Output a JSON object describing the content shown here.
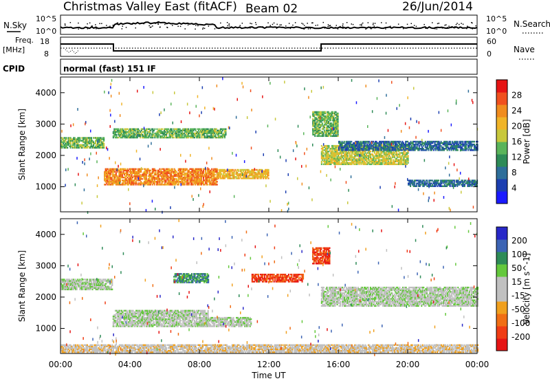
{
  "header": {
    "title": "Christmas Valley East (fitACF)",
    "beam": "Beam 02",
    "date": "26/Jun/2014"
  },
  "top_panels": {
    "nsky_label": "N.Sky",
    "nsearch_label": "N.Search",
    "noise_ticks": [
      "10^5",
      "10^0"
    ],
    "noise_ticks_right": [
      "10^5",
      "10^0"
    ],
    "freq_label_1": "Freq.",
    "freq_label_2": "[MHz]",
    "freq_ticks": [
      "18",
      "8"
    ],
    "nave_label": "Nave",
    "nave_ticks": [
      "60",
      "0"
    ],
    "cpid_label": "CPID",
    "cpid_text": "normal (fast) 151 IF"
  },
  "colors": {
    "power": [
      "#1a1aff",
      "#1c3fb0",
      "#2e6e9a",
      "#2e8b57",
      "#5ab45a",
      "#c8c83c",
      "#f0b428",
      "#f08c1e",
      "#f0501e",
      "#e61414"
    ],
    "velocity": [
      "#2828c8",
      "#3c64b4",
      "#2e8b57",
      "#64c83c",
      "#c0c0c0",
      "#c0c0c0",
      "#f0a01e",
      "#f06e14",
      "#f03c14",
      "#e61414"
    ],
    "background": "#ffffff",
    "axis": "#000000"
  },
  "chart_data": [
    {
      "type": "heatmap",
      "title": "",
      "xlabel": "Time UT",
      "ylabel": "Slant Range [km]",
      "xlim": [
        0,
        24
      ],
      "ylim": [
        200,
        4500
      ],
      "x_ticks": [
        "00:00",
        "04:00",
        "08:00",
        "12:00",
        "16:00",
        "20:00",
        "00:00"
      ],
      "y_ticks": [
        1000,
        2000,
        3000,
        4000
      ],
      "colorbar": {
        "label": "Power [dB]",
        "range": [
          0,
          32
        ],
        "ticks": [
          4,
          8,
          12,
          16,
          20,
          24,
          28
        ]
      },
      "features": [
        {
          "t_start": 0.0,
          "t_end": 2.5,
          "range_center": 2400,
          "range_width": 350,
          "power": 14
        },
        {
          "t_start": 2.5,
          "t_end": 9.0,
          "range_center": 1300,
          "range_width": 500,
          "power": 24
        },
        {
          "t_start": 3.0,
          "t_end": 9.5,
          "range_center": 2700,
          "range_width": 300,
          "power": 13
        },
        {
          "t_start": 9.0,
          "t_end": 12.0,
          "range_center": 1400,
          "range_width": 300,
          "power": 20
        },
        {
          "t_start": 14.5,
          "t_end": 16.0,
          "range_center": 3000,
          "range_width": 800,
          "power": 14
        },
        {
          "t_start": 15.0,
          "t_end": 20.0,
          "range_center": 2000,
          "range_width": 600,
          "power": 18
        },
        {
          "t_start": 16.0,
          "t_end": 24.0,
          "range_center": 2300,
          "range_width": 300,
          "power": 9
        },
        {
          "t_start": 20.0,
          "t_end": 24.0,
          "range_center": 1100,
          "range_width": 200,
          "power": 8
        }
      ]
    },
    {
      "type": "heatmap",
      "title": "",
      "xlabel": "Time UT",
      "ylabel": "Slant Range [km]",
      "xlim": [
        0,
        24
      ],
      "ylim": [
        200,
        4500
      ],
      "x_ticks": [
        "00:00",
        "04:00",
        "08:00",
        "12:00",
        "16:00",
        "20:00",
        "00:00"
      ],
      "y_ticks": [
        1000,
        2000,
        3000,
        4000
      ],
      "colorbar": {
        "label": "Velocity [m s^-1]",
        "range": [
          -250,
          250
        ],
        "ticks": [
          200,
          100,
          50,
          15,
          -15,
          -50,
          -100,
          -200
        ]
      },
      "features": [
        {
          "t_start": 0.0,
          "t_end": 3.0,
          "range_center": 2400,
          "range_width": 350,
          "velocity": 0
        },
        {
          "t_start": 3.0,
          "t_end": 8.5,
          "range_center": 1300,
          "range_width": 500,
          "velocity": 0
        },
        {
          "t_start": 6.5,
          "t_end": 8.5,
          "range_center": 2600,
          "range_width": 300,
          "velocity": 120
        },
        {
          "t_start": 8.0,
          "t_end": 11.0,
          "range_center": 1200,
          "range_width": 300,
          "velocity": 40
        },
        {
          "t_start": 11.0,
          "t_end": 14.0,
          "range_center": 2600,
          "range_width": 250,
          "velocity": -200
        },
        {
          "t_start": 14.5,
          "t_end": 15.5,
          "range_center": 3300,
          "range_width": 500,
          "velocity": -200
        },
        {
          "t_start": 15.0,
          "t_end": 24.0,
          "range_center": 2000,
          "range_width": 600,
          "velocity": 0
        },
        {
          "t_start": 0.0,
          "t_end": 24.0,
          "range_center": 350,
          "range_width": 250,
          "velocity": -40
        }
      ]
    }
  ]
}
